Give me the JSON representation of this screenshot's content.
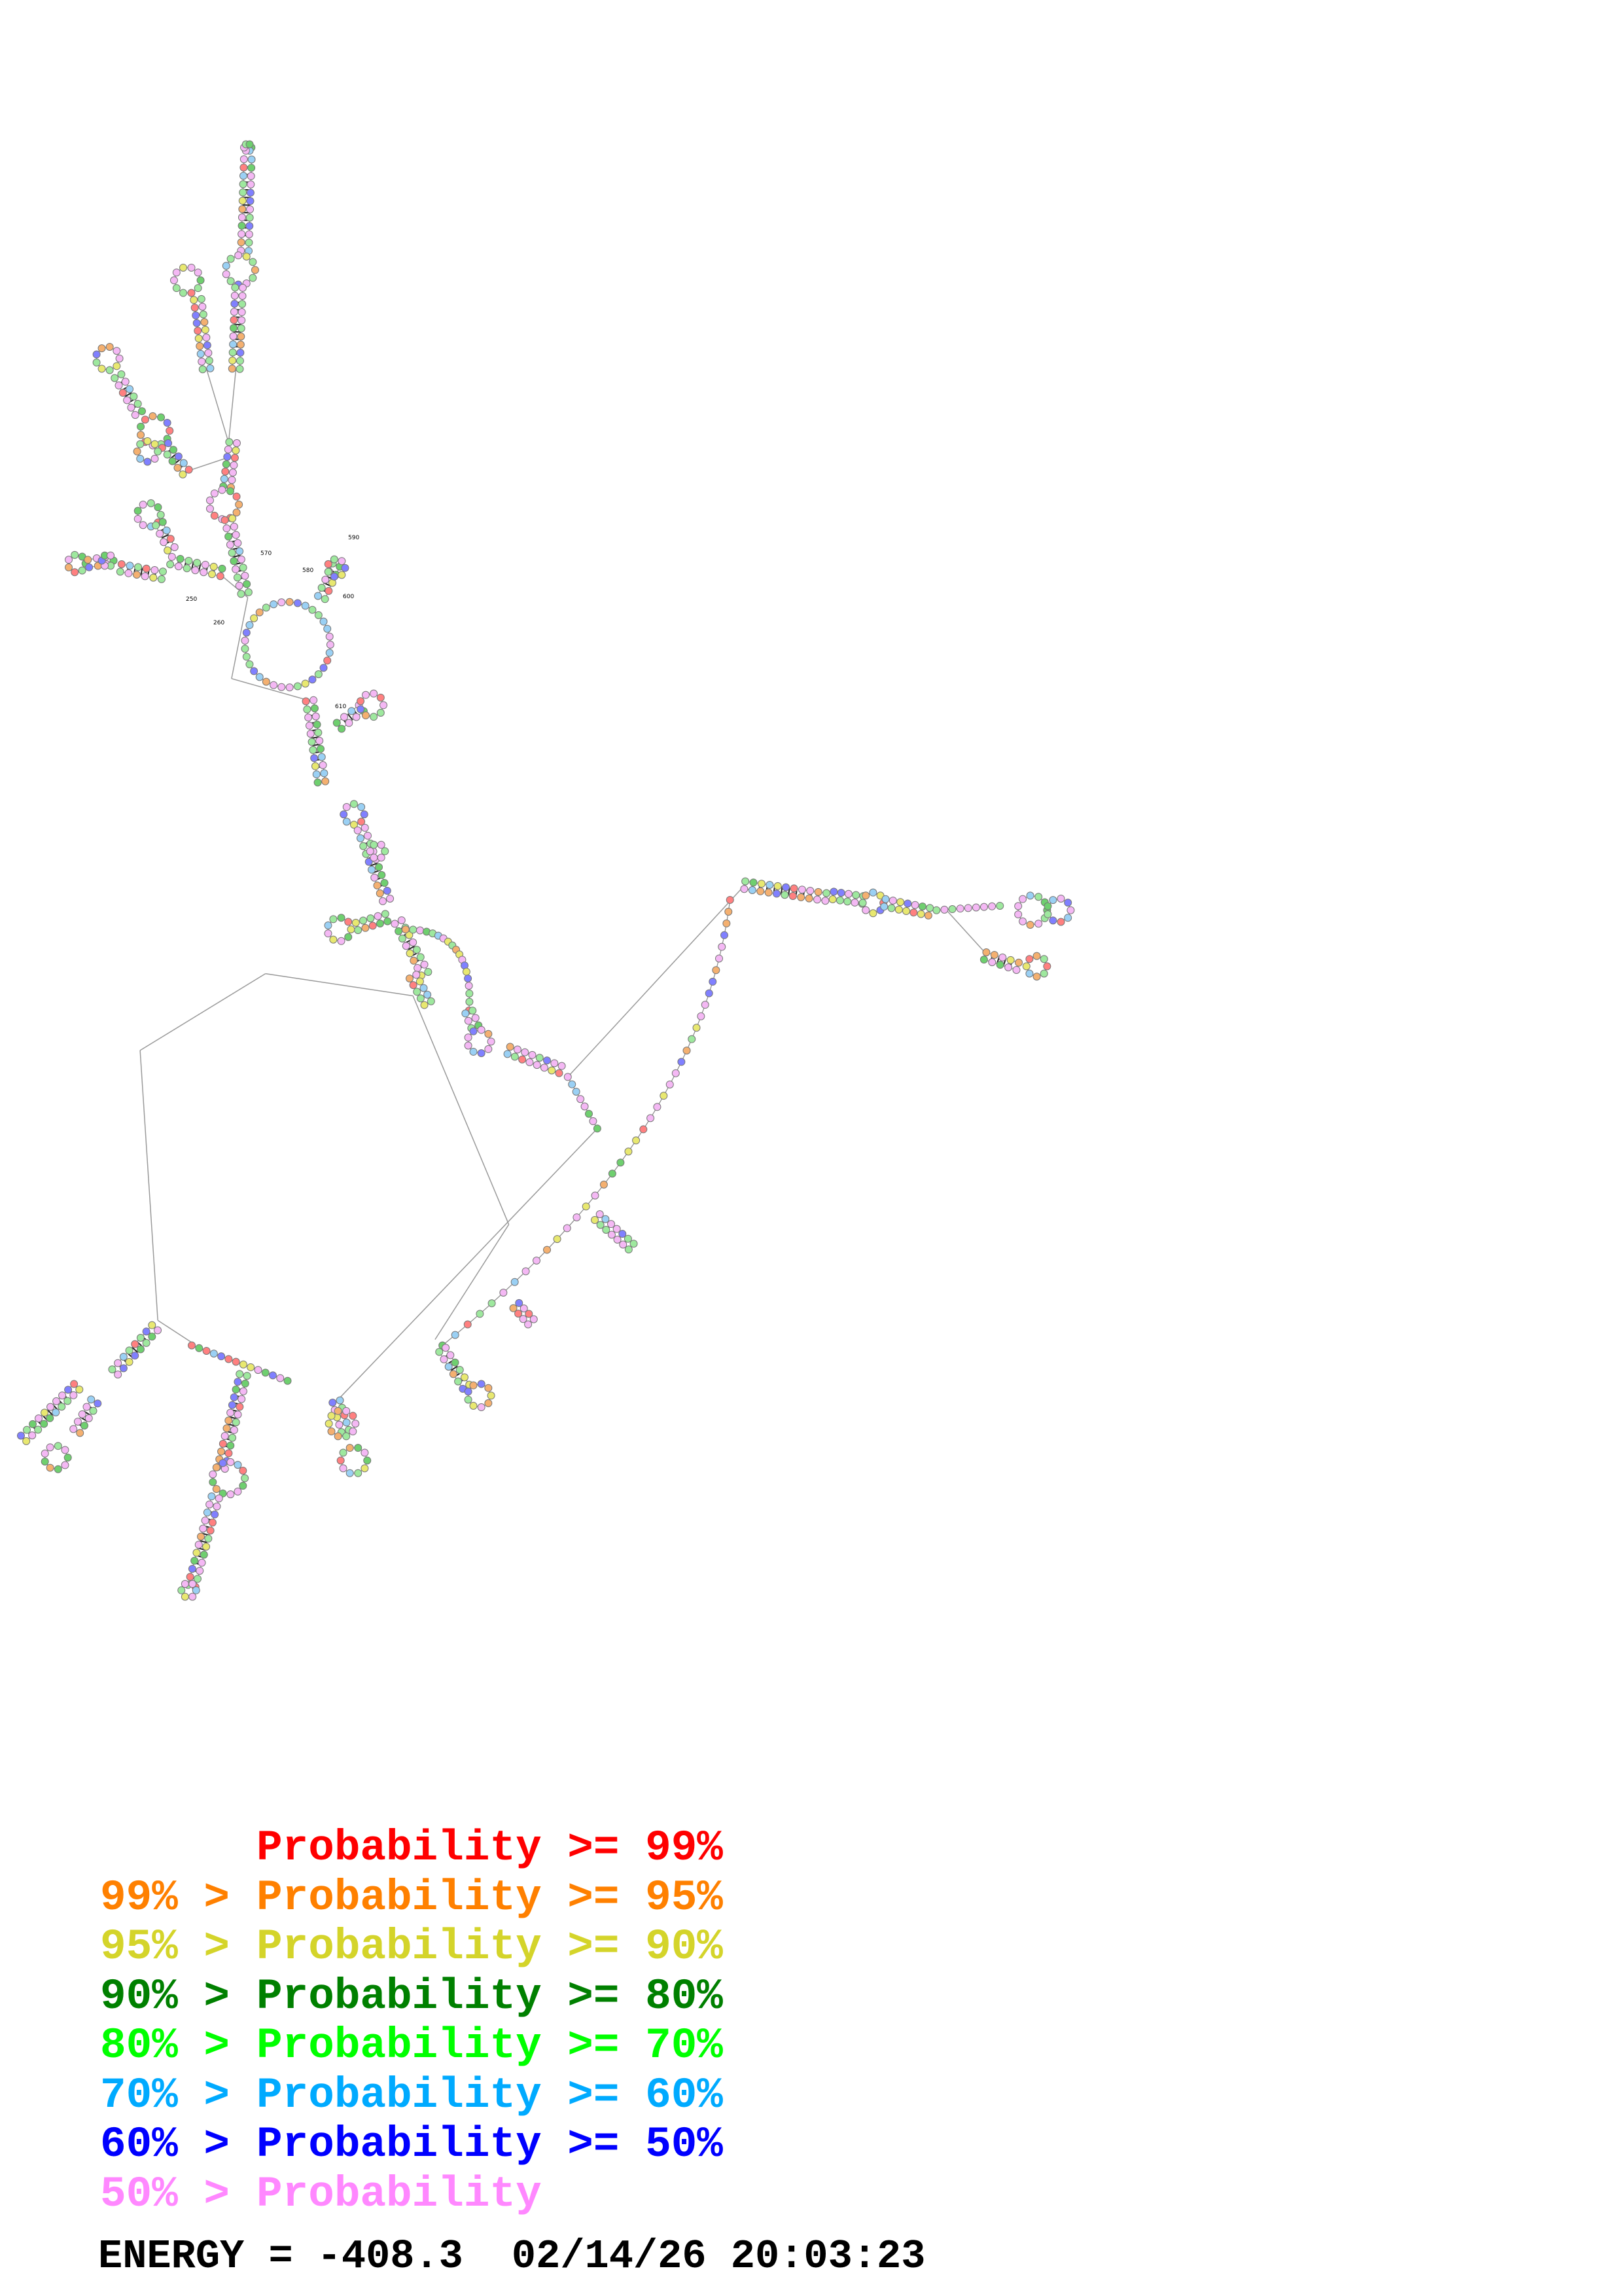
{
  "legend": [
    {
      "prefix": "",
      "label": "Probability >= 99%",
      "color": "#ff0000"
    },
    {
      "prefix": "99% >",
      "label": "Probability >= 95%",
      "color": "#ff8000"
    },
    {
      "prefix": "95% >",
      "label": "Probability >= 90%",
      "color": "#d4d42a"
    },
    {
      "prefix": "90% >",
      "label": "Probability >= 80%",
      "color": "#008000"
    },
    {
      "prefix": "80% >",
      "label": "Probability >= 70%",
      "color": "#00ff00"
    },
    {
      "prefix": "70% >",
      "label": "Probability >= 60%",
      "color": "#00aaff"
    },
    {
      "prefix": "60% >",
      "label": "Probability >= 50%",
      "color": "#0000ff"
    },
    {
      "prefix": "50% >",
      "label": "Probability",
      "color": "#ff88ff"
    }
  ],
  "footer": {
    "energy_label": "ENERGY =",
    "energy_value": "-408.3",
    "timestamp": "02/14/26 20:03:23"
  },
  "position_labels": [
    "250",
    "260",
    "570",
    "580",
    "590",
    "600",
    "610"
  ]
}
